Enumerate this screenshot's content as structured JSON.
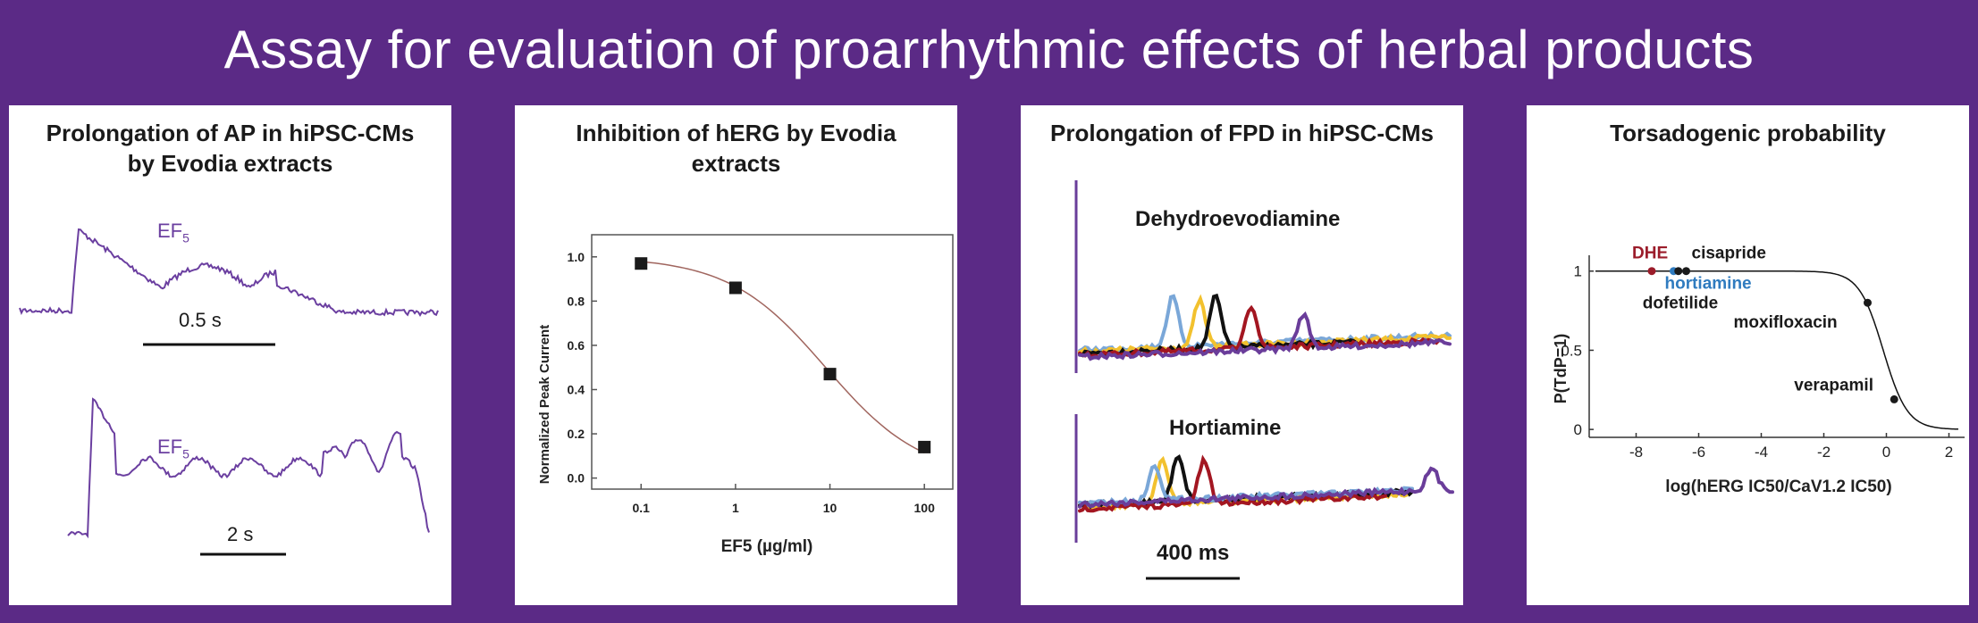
{
  "banner_title": "Assay for evaluation of proarrhythmic effects of herbal products",
  "panels": [
    {
      "title": "Prolongation of AP in hiPSC-CMs by Evodia extracts",
      "trace_label_base": "EF",
      "trace_label_sub": "5",
      "scale_top": "0.5 s",
      "scale_bottom": "2 s"
    },
    {
      "title": "Inhibition of hERG by Evodia extracts",
      "ylabel": "Normalized Peak Current",
      "xlabel": "EF5 (µg/ml)"
    },
    {
      "title": "Prolongation of FPD in hiPSC-CMs",
      "compound_top": "Dehydroevodiamine",
      "compound_bottom": "Hortiamine",
      "scale": "400 ms"
    },
    {
      "title": "Torsadogenic probability",
      "ylabel": "P(TdP=1)",
      "xlabel": "log(hERG IC50/CaV1.2 IC50)"
    }
  ],
  "chart_data": [
    {
      "type": "scatter",
      "title": "Inhibition of hERG by Evodia extracts",
      "xlabel": "EF5 (µg/ml)",
      "ylabel": "Normalized Peak Current",
      "xscale": "log",
      "xlim": [
        0.03,
        200
      ],
      "ylim": [
        -0.05,
        1.1
      ],
      "xticks": [
        "0.1",
        "1",
        "10",
        "100"
      ],
      "yticks": [
        "0.0",
        "0.2",
        "0.4",
        "0.6",
        "0.8",
        "1.0"
      ],
      "x": [
        0.1,
        1,
        10,
        100
      ],
      "values": [
        0.97,
        0.86,
        0.47,
        0.14
      ],
      "fit_line": true,
      "marker_color": "#1a1a1a",
      "line_color": "#a0655e"
    },
    {
      "type": "scatter",
      "title": "Torsadogenic probability",
      "xlabel": "log(hERG IC50/CaV1.2 IC50)",
      "ylabel": "P(TdP=1)",
      "xlim": [
        -9.5,
        2.5
      ],
      "ylim": [
        -0.05,
        1.1
      ],
      "xticks": [
        "-8",
        "-6",
        "-4",
        "-2",
        "0",
        "2"
      ],
      "yticks": [
        "0",
        "0.5",
        "1"
      ],
      "points": [
        {
          "name": "DHE",
          "x": -7.5,
          "y": 1.0,
          "color": "#9b1c2a"
        },
        {
          "name": "hortiamine",
          "x": -6.8,
          "y": 1.0,
          "color": "#2f7bbf"
        },
        {
          "name": "dofetilide",
          "x": -6.65,
          "y": 1.0,
          "color": "#1a1a1a"
        },
        {
          "name": "cisapride",
          "x": -6.4,
          "y": 1.0,
          "color": "#1a1a1a"
        },
        {
          "name": "moxifloxacin",
          "x": -0.6,
          "y": 0.8,
          "color": "#1a1a1a"
        },
        {
          "name": "verapamil",
          "x": 0.25,
          "y": 0.19,
          "color": "#1a1a1a"
        }
      ],
      "fit_line": true
    }
  ],
  "colors": {
    "accent": "#5b2a86",
    "trace_purple": "#6b3fa0",
    "fpd_blue": "#7aa7d8",
    "fpd_yellow": "#f2c12e",
    "fpd_black": "#111111",
    "fpd_red": "#a31621",
    "fpd_purple": "#6a3d9a"
  }
}
